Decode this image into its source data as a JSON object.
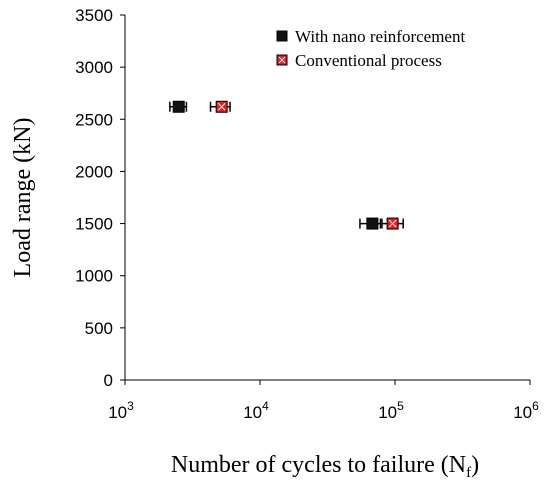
{
  "chart_data": {
    "type": "scatter",
    "title": "",
    "xlabel": "Number of cycles to failure (N",
    "xlabel_sub": "f",
    "xlabel_close": ")",
    "ylabel": "Load range (kN)",
    "xscale": "log",
    "xlim": [
      1000,
      1000000
    ],
    "ylim": [
      0,
      3500
    ],
    "x_tick_values": [
      1000,
      10000,
      100000,
      1000000
    ],
    "x_ticks": [
      {
        "base": "10",
        "exp": "3"
      },
      {
        "base": "10",
        "exp": "4"
      },
      {
        "base": "10",
        "exp": "5"
      },
      {
        "base": "10",
        "exp": "6"
      }
    ],
    "y_ticks": [
      0,
      500,
      1000,
      1500,
      2000,
      2500,
      3000,
      3500
    ],
    "grid": false,
    "legend_position": "top-right",
    "series": [
      {
        "name": "With nano reinforcement",
        "color": "#111111",
        "marker": "square",
        "points": [
          {
            "x": 2500,
            "y": 2620,
            "xerr": [
              2150,
              2850
            ]
          },
          {
            "x": 68000,
            "y": 1500,
            "xerr": [
              55000,
              78000
            ]
          }
        ]
      },
      {
        "name": "Conventional process",
        "color": "#e02020",
        "marker": "square-x",
        "points": [
          {
            "x": 5200,
            "y": 2620,
            "xerr": [
              4300,
              6000
            ]
          },
          {
            "x": 96000,
            "y": 1500,
            "xerr": [
              80000,
              115000
            ]
          }
        ]
      }
    ]
  }
}
